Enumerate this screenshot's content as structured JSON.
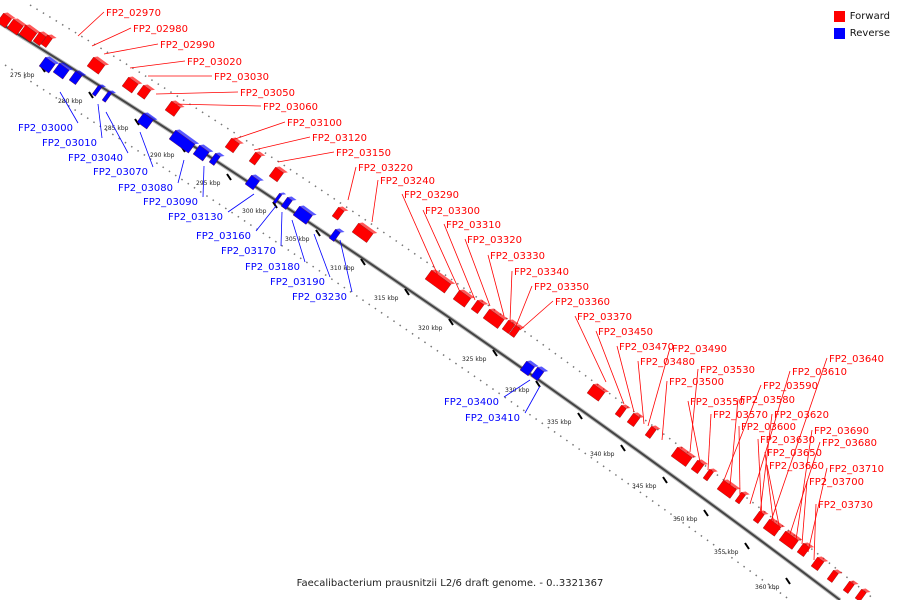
{
  "title": "Faecalibacterium prausnitzii L2/6 draft genome. - 0..3321367",
  "legend": [
    {
      "label": "Forward",
      "color": "#ff0000"
    },
    {
      "label": "Reverse",
      "color": "#0000ff"
    }
  ],
  "colors": {
    "forward": "#ff0000",
    "reverse": "#0000ff",
    "backbone": "#444444"
  },
  "ticks": [
    "275 kbp",
    "280 kbp",
    "285 kbp",
    "290 kbp",
    "295 kbp",
    "300 kbp",
    "305 kbp",
    "310 kbp",
    "315 kbp",
    "320 kbp",
    "325 kbp",
    "330 kbp",
    "335 kbp",
    "340 kbp",
    "345 kbp",
    "350 kbp",
    "355 kbp",
    "360 kbp"
  ],
  "forward_labels": [
    "FP2_02970",
    "FP2_02980",
    "FP2_02990",
    "FP2_03020",
    "FP2_03030",
    "FP2_03050",
    "FP2_03060",
    "FP2_03100",
    "FP2_03120",
    "FP2_03150",
    "FP2_03220",
    "FP2_03240",
    "FP2_03290",
    "FP2_03300",
    "FP2_03310",
    "FP2_03320",
    "FP2_03330",
    "FP2_03340",
    "FP2_03350",
    "FP2_03360",
    "FP2_03370",
    "FP2_03450",
    "FP2_03470",
    "FP2_03480",
    "FP2_03490",
    "FP2_03500",
    "FP2_03530",
    "FP2_03550",
    "FP2_03570",
    "FP2_03590",
    "FP2_03580",
    "FP2_03600",
    "FP2_03610",
    "FP2_03620",
    "FP2_03630",
    "FP2_03640",
    "FP2_03650",
    "FP2_03660",
    "FP2_03680",
    "FP2_03690",
    "FP2_03700",
    "FP2_03710",
    "FP2_03730"
  ],
  "reverse_labels": [
    "FP2_03000",
    "FP2_03010",
    "FP2_03040",
    "FP2_03070",
    "FP2_03080",
    "FP2_03090",
    "FP2_03130",
    "FP2_03160",
    "FP2_03170",
    "FP2_03180",
    "FP2_03190",
    "FP2_03230",
    "FP2_03400",
    "FP2_03410"
  ]
}
